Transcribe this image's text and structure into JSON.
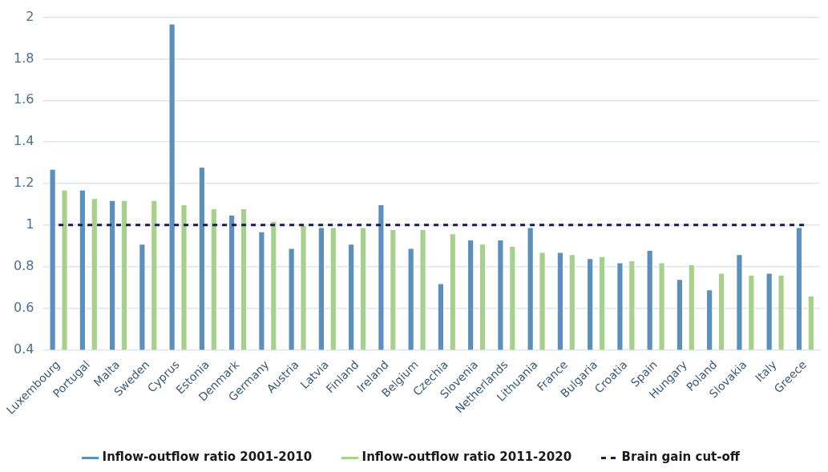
{
  "chart_data": {
    "type": "bar",
    "categories": [
      "Luxembourg",
      "Portugal",
      "Malta",
      "Sweden",
      "Cyprus",
      "Estonia",
      "Denmark",
      "Germany",
      "Austria",
      "Latvia",
      "Finland",
      "Ireland",
      "Belgium",
      "Czechia",
      "Slovenia",
      "Netherlands",
      "Lithuania",
      "France",
      "Bulgaria",
      "Croatia",
      "Spain",
      "Hungary",
      "Poland",
      "Slovakia",
      "Italy",
      "Greece"
    ],
    "series": [
      {
        "name": "Inflow-outflow ratio 2001-2010",
        "color": "#5b8fbd",
        "values": [
          1.27,
          1.17,
          1.12,
          0.91,
          1.97,
          1.28,
          1.05,
          0.97,
          0.89,
          0.99,
          0.91,
          1.1,
          0.89,
          0.72,
          0.93,
          0.93,
          0.99,
          0.87,
          0.84,
          0.82,
          0.88,
          0.74,
          0.69,
          0.86,
          0.77,
          0.99
        ]
      },
      {
        "name": "Inflow-outflow ratio 2011-2020",
        "color": "#a6d18c",
        "values": [
          1.17,
          1.13,
          1.12,
          1.12,
          1.1,
          1.08,
          1.08,
          1.02,
          1.0,
          0.99,
          0.99,
          0.98,
          0.98,
          0.96,
          0.91,
          0.9,
          0.87,
          0.86,
          0.85,
          0.83,
          0.82,
          0.81,
          0.77,
          0.76,
          0.76,
          0.66
        ]
      },
      {
        "name": "Brain gain cut-off",
        "type": "line",
        "color": "#1b1b4b",
        "line_style": "dashed",
        "marker": "none",
        "values": [
          1,
          1,
          1,
          1,
          1,
          1,
          1,
          1,
          1,
          1,
          1,
          1,
          1,
          1,
          1,
          1,
          1,
          1,
          1,
          1,
          1,
          1,
          1,
          1,
          1,
          1
        ]
      }
    ],
    "ylim": [
      0.4,
      2
    ],
    "yticks": [
      0.4,
      0.6,
      0.8,
      1,
      1.2,
      1.4,
      1.6,
      1.8,
      2
    ],
    "grid": "y",
    "legend": "bottom"
  }
}
